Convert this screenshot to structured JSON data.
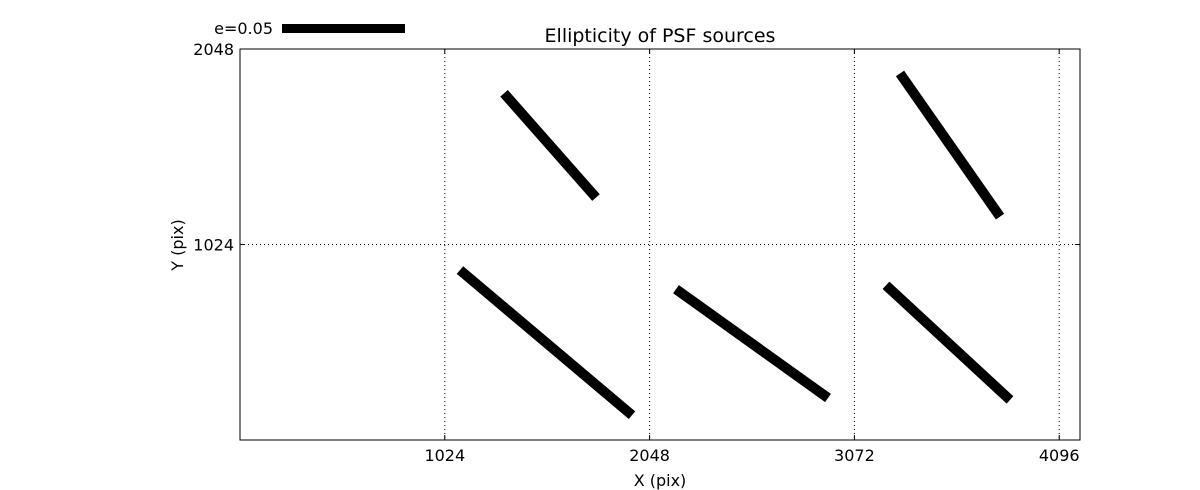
{
  "chart_data": {
    "type": "quiver",
    "title": "Ellipticity of PSF sources",
    "xlabel": "X (pix)",
    "ylabel": "Y (pix)",
    "xlim": [
      0,
      4200
    ],
    "ylim": [
      0,
      2048
    ],
    "xticks": [
      1024,
      2048,
      3072,
      4096
    ],
    "xtick_labels": [
      "1024",
      "2048",
      "3072",
      "4096"
    ],
    "yticks": [
      1024,
      2048
    ],
    "ytick_labels": [
      "1024",
      "2048"
    ],
    "grid": true,
    "legend": {
      "label": "e=0.05",
      "placement": "top-left outside"
    },
    "sticks": [
      {
        "x0": 1320,
        "y0": 1816,
        "x1": 1780,
        "y1": 1270
      },
      {
        "x0": 3300,
        "y0": 1920,
        "x1": 3800,
        "y1": 1170
      },
      {
        "x0": 1100,
        "y0": 890,
        "x1": 1960,
        "y1": 130
      },
      {
        "x0": 2180,
        "y0": 790,
        "x1": 2940,
        "y1": 220
      },
      {
        "x0": 3230,
        "y0": 810,
        "x1": 3850,
        "y1": 210
      }
    ]
  }
}
